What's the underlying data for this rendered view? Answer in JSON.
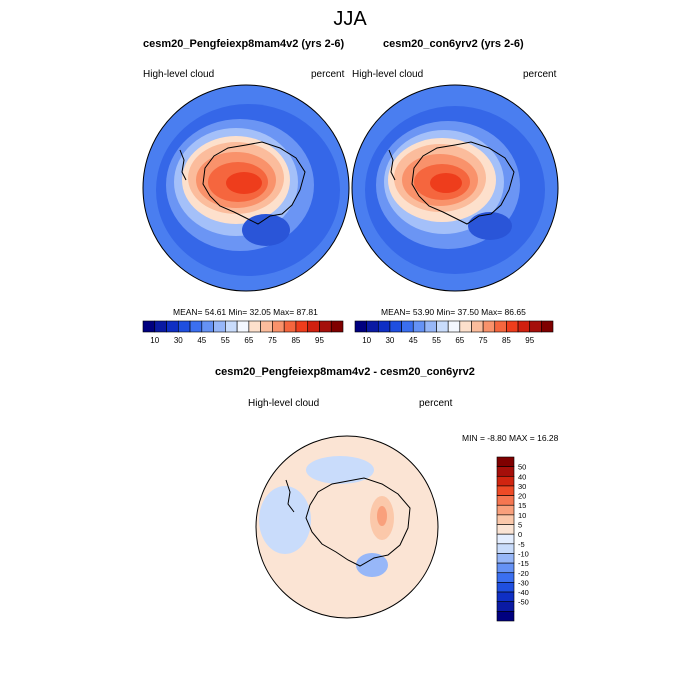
{
  "figure": {
    "title": "JJA"
  },
  "colors": {
    "abs_levels": [
      "#00007f",
      "#0a1aa3",
      "#0f2fc4",
      "#1f4fe0",
      "#3b6ff0",
      "#6592f5",
      "#97b7f8",
      "#c9dcfb",
      "#f4f8ff",
      "#fde0cc",
      "#fbbc9c",
      "#f9926b",
      "#f5663e",
      "#ee3d1c",
      "#d0200f",
      "#a50f0a",
      "#7f0000"
    ],
    "diff_levels": [
      "#00007f",
      "#0a1aa3",
      "#0f2fc4",
      "#1f4fe0",
      "#3b6ff0",
      "#6592f5",
      "#97b7f8",
      "#c9dcfb",
      "#e4eeff",
      "#fbe4d4",
      "#fbc8aa",
      "#f9a07c",
      "#f57651",
      "#ee4a26",
      "#d02510",
      "#a50f0a",
      "#7f0000"
    ]
  },
  "chart_data": [
    {
      "type": "heatmap",
      "title": "cesm20_Pengfeiexp8mam4v2 (yrs 2-6)",
      "left_label": "High-level cloud",
      "right_label": "percent",
      "stats": "MEAN=  54.61  Min=  32.05  Max=  87.81",
      "mean": 54.61,
      "min": 32.05,
      "max": 87.81,
      "colorbar_labels": [
        "10",
        "30",
        "45",
        "55",
        "65",
        "75",
        "85",
        "95"
      ]
    },
    {
      "type": "heatmap",
      "title": "cesm20_con6yrv2 (yrs 2-6)",
      "left_label": "High-level cloud",
      "right_label": "percent",
      "stats": "MEAN=  53.90  Min=  37.50  Max=  86.65",
      "mean": 53.9,
      "min": 37.5,
      "max": 86.65,
      "colorbar_labels": [
        "10",
        "30",
        "45",
        "55",
        "65",
        "75",
        "85",
        "95"
      ]
    },
    {
      "type": "heatmap",
      "title": "cesm20_Pengfeiexp8mam4v2 - cesm20_con6yrv2",
      "left_label": "High-level cloud",
      "right_label": "percent",
      "stats": "MIN =  -8.80 MAX =  16.28",
      "min": -8.8,
      "max": 16.28,
      "colorbar_labels": [
        "50",
        "40",
        "30",
        "20",
        "15",
        "10",
        "5",
        "0",
        "-5",
        "-10",
        "-15",
        "-20",
        "-30",
        "-40",
        "-50"
      ]
    }
  ]
}
